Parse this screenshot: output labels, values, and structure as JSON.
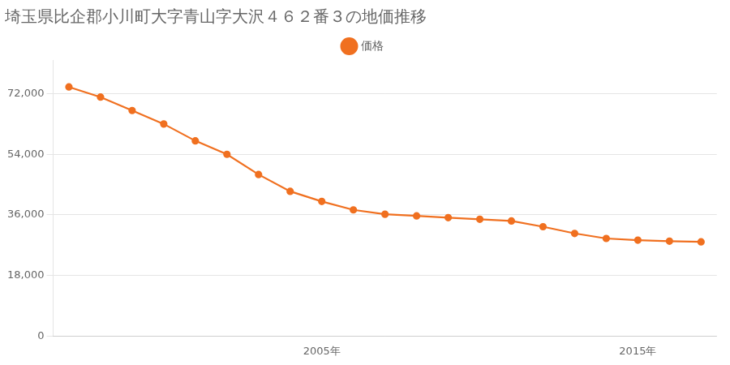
{
  "chart_data": {
    "type": "line",
    "title": "埼玉県比企郡小川町大字青山字大沢４６２番３の地価推移",
    "x": [
      1997,
      1998,
      1999,
      2000,
      2001,
      2002,
      2003,
      2004,
      2005,
      2006,
      2007,
      2008,
      2009,
      2010,
      2011,
      2012,
      2013,
      2014,
      2015,
      2016,
      2017
    ],
    "series": [
      {
        "name": "価格",
        "color": "#f07020",
        "marker": "circle",
        "values": [
          74000,
          71000,
          67000,
          63000,
          58000,
          54000,
          48000,
          43000,
          40000,
          37500,
          36200,
          35700,
          35200,
          34700,
          34200,
          32500,
          30500,
          29000,
          28500,
          28200,
          28000
        ]
      }
    ],
    "xlim": [
      1996.5,
      2017.5
    ],
    "xticks": [
      {
        "value": 2005,
        "label": "2005年"
      },
      {
        "value": 2015,
        "label": "2015年"
      }
    ],
    "ylim": [
      0,
      82000
    ],
    "yticks": [
      0,
      {
        "value": 18000,
        "label": "18,000"
      },
      {
        "value": 36000,
        "label": "36,000"
      },
      {
        "value": 54000,
        "label": "54,000"
      },
      {
        "value": 72000,
        "label": "72,000"
      }
    ],
    "grid": "y",
    "legend": "top"
  }
}
